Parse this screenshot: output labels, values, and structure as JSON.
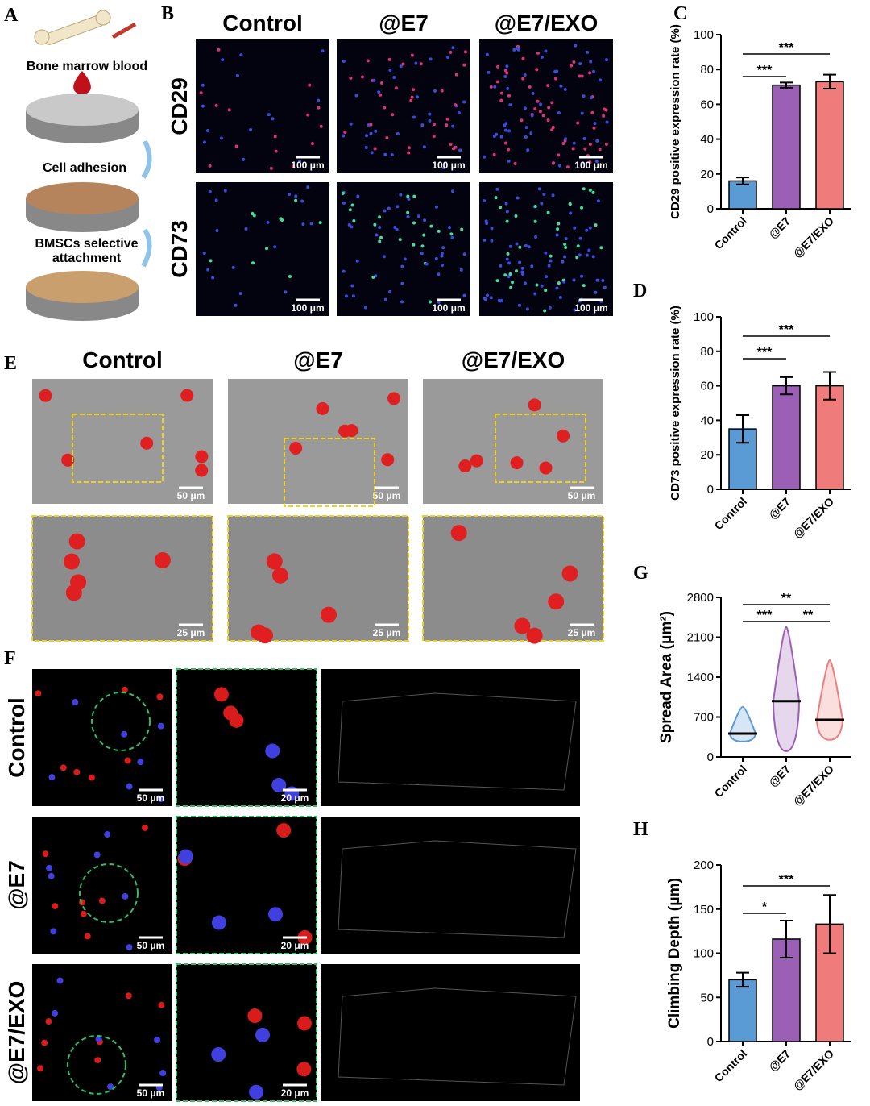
{
  "letters": [
    "A",
    "B",
    "C",
    "D",
    "E",
    "F",
    "G",
    "H"
  ],
  "panel_a": {
    "steps": [
      "Bone marrow blood",
      "Cell adhesion",
      "BMSCs selective attachment"
    ]
  },
  "panel_b": {
    "columns": [
      "Control",
      "@E7",
      "@E7/EXO"
    ],
    "rows": [
      "CD29",
      "CD73"
    ],
    "scale": "100 μm"
  },
  "panel_e": {
    "columns": [
      "Control",
      "@E7",
      "@E7/EXO"
    ],
    "scale_top": "50 μm",
    "scale_bottom": "25 μm"
  },
  "panel_f": {
    "rows": [
      "Control",
      "@E7",
      "@E7/EXO"
    ],
    "scale_left": "50 μm",
    "scale_middle": "20 μm"
  },
  "chart_data": [
    {
      "type": "bar",
      "y_label": "CD29 positive expression rate (%)",
      "categories": [
        "Control",
        "@E7",
        "@E7/EXO"
      ],
      "values": [
        16,
        71,
        73
      ],
      "errors": [
        2,
        1.5,
        4
      ],
      "colors": [
        "#5b9bd5",
        "#9b5fb5",
        "#f07b7b"
      ],
      "ylim": [
        0,
        100
      ],
      "yticks": [
        0,
        20,
        40,
        60,
        80,
        100
      ],
      "annotations": [
        {
          "label": "***",
          "between": [
            "Control",
            "@E7"
          ]
        },
        {
          "label": "***",
          "between": [
            "Control",
            "@E7/EXO"
          ]
        }
      ]
    },
    {
      "type": "bar",
      "y_label": "CD73 positive expression rate (%)",
      "categories": [
        "Control",
        "@E7",
        "@E7/EXO"
      ],
      "values": [
        35,
        60,
        60
      ],
      "errors": [
        8,
        5,
        8
      ],
      "colors": [
        "#5b9bd5",
        "#9b5fb5",
        "#f07b7b"
      ],
      "ylim": [
        0,
        100
      ],
      "yticks": [
        0,
        20,
        40,
        60,
        80,
        100
      ],
      "annotations": [
        {
          "label": "***",
          "between": [
            "Control",
            "@E7"
          ]
        },
        {
          "label": "***",
          "between": [
            "Control",
            "@E7/EXO"
          ]
        }
      ]
    },
    {
      "type": "violin",
      "y_label": "Spread Area (μm²)",
      "categories": [
        "Control",
        "@E7",
        "@E7/EXO"
      ],
      "medians": [
        410,
        980,
        650
      ],
      "mins": [
        270,
        100,
        300
      ],
      "maxs": [
        880,
        2280,
        1700
      ],
      "colors": [
        "#5b9bd5",
        "#9b5fb5",
        "#f07b7b"
      ],
      "ylim": [
        0,
        2800
      ],
      "yticks": [
        0,
        700,
        1400,
        2100,
        2800
      ],
      "annotations": [
        {
          "label": "***",
          "between": [
            "Control",
            "@E7"
          ]
        },
        {
          "label": "**",
          "between": [
            "@E7",
            "@E7/EXO"
          ]
        },
        {
          "label": "**",
          "between": [
            "Control",
            "@E7/EXO"
          ]
        }
      ]
    },
    {
      "type": "bar",
      "y_label": "Climbing Depth (μm)",
      "categories": [
        "Control",
        "@E7",
        "@E7/EXO"
      ],
      "values": [
        70,
        116,
        133
      ],
      "errors": [
        8,
        21,
        33
      ],
      "colors": [
        "#5b9bd5",
        "#9b5fb5",
        "#f07b7b"
      ],
      "ylim": [
        0,
        200
      ],
      "yticks": [
        0,
        50,
        100,
        150,
        200
      ],
      "annotations": [
        {
          "label": "*",
          "between": [
            "Control",
            "@E7"
          ]
        },
        {
          "label": "***",
          "between": [
            "Control",
            "@E7/EXO"
          ]
        }
      ]
    }
  ]
}
